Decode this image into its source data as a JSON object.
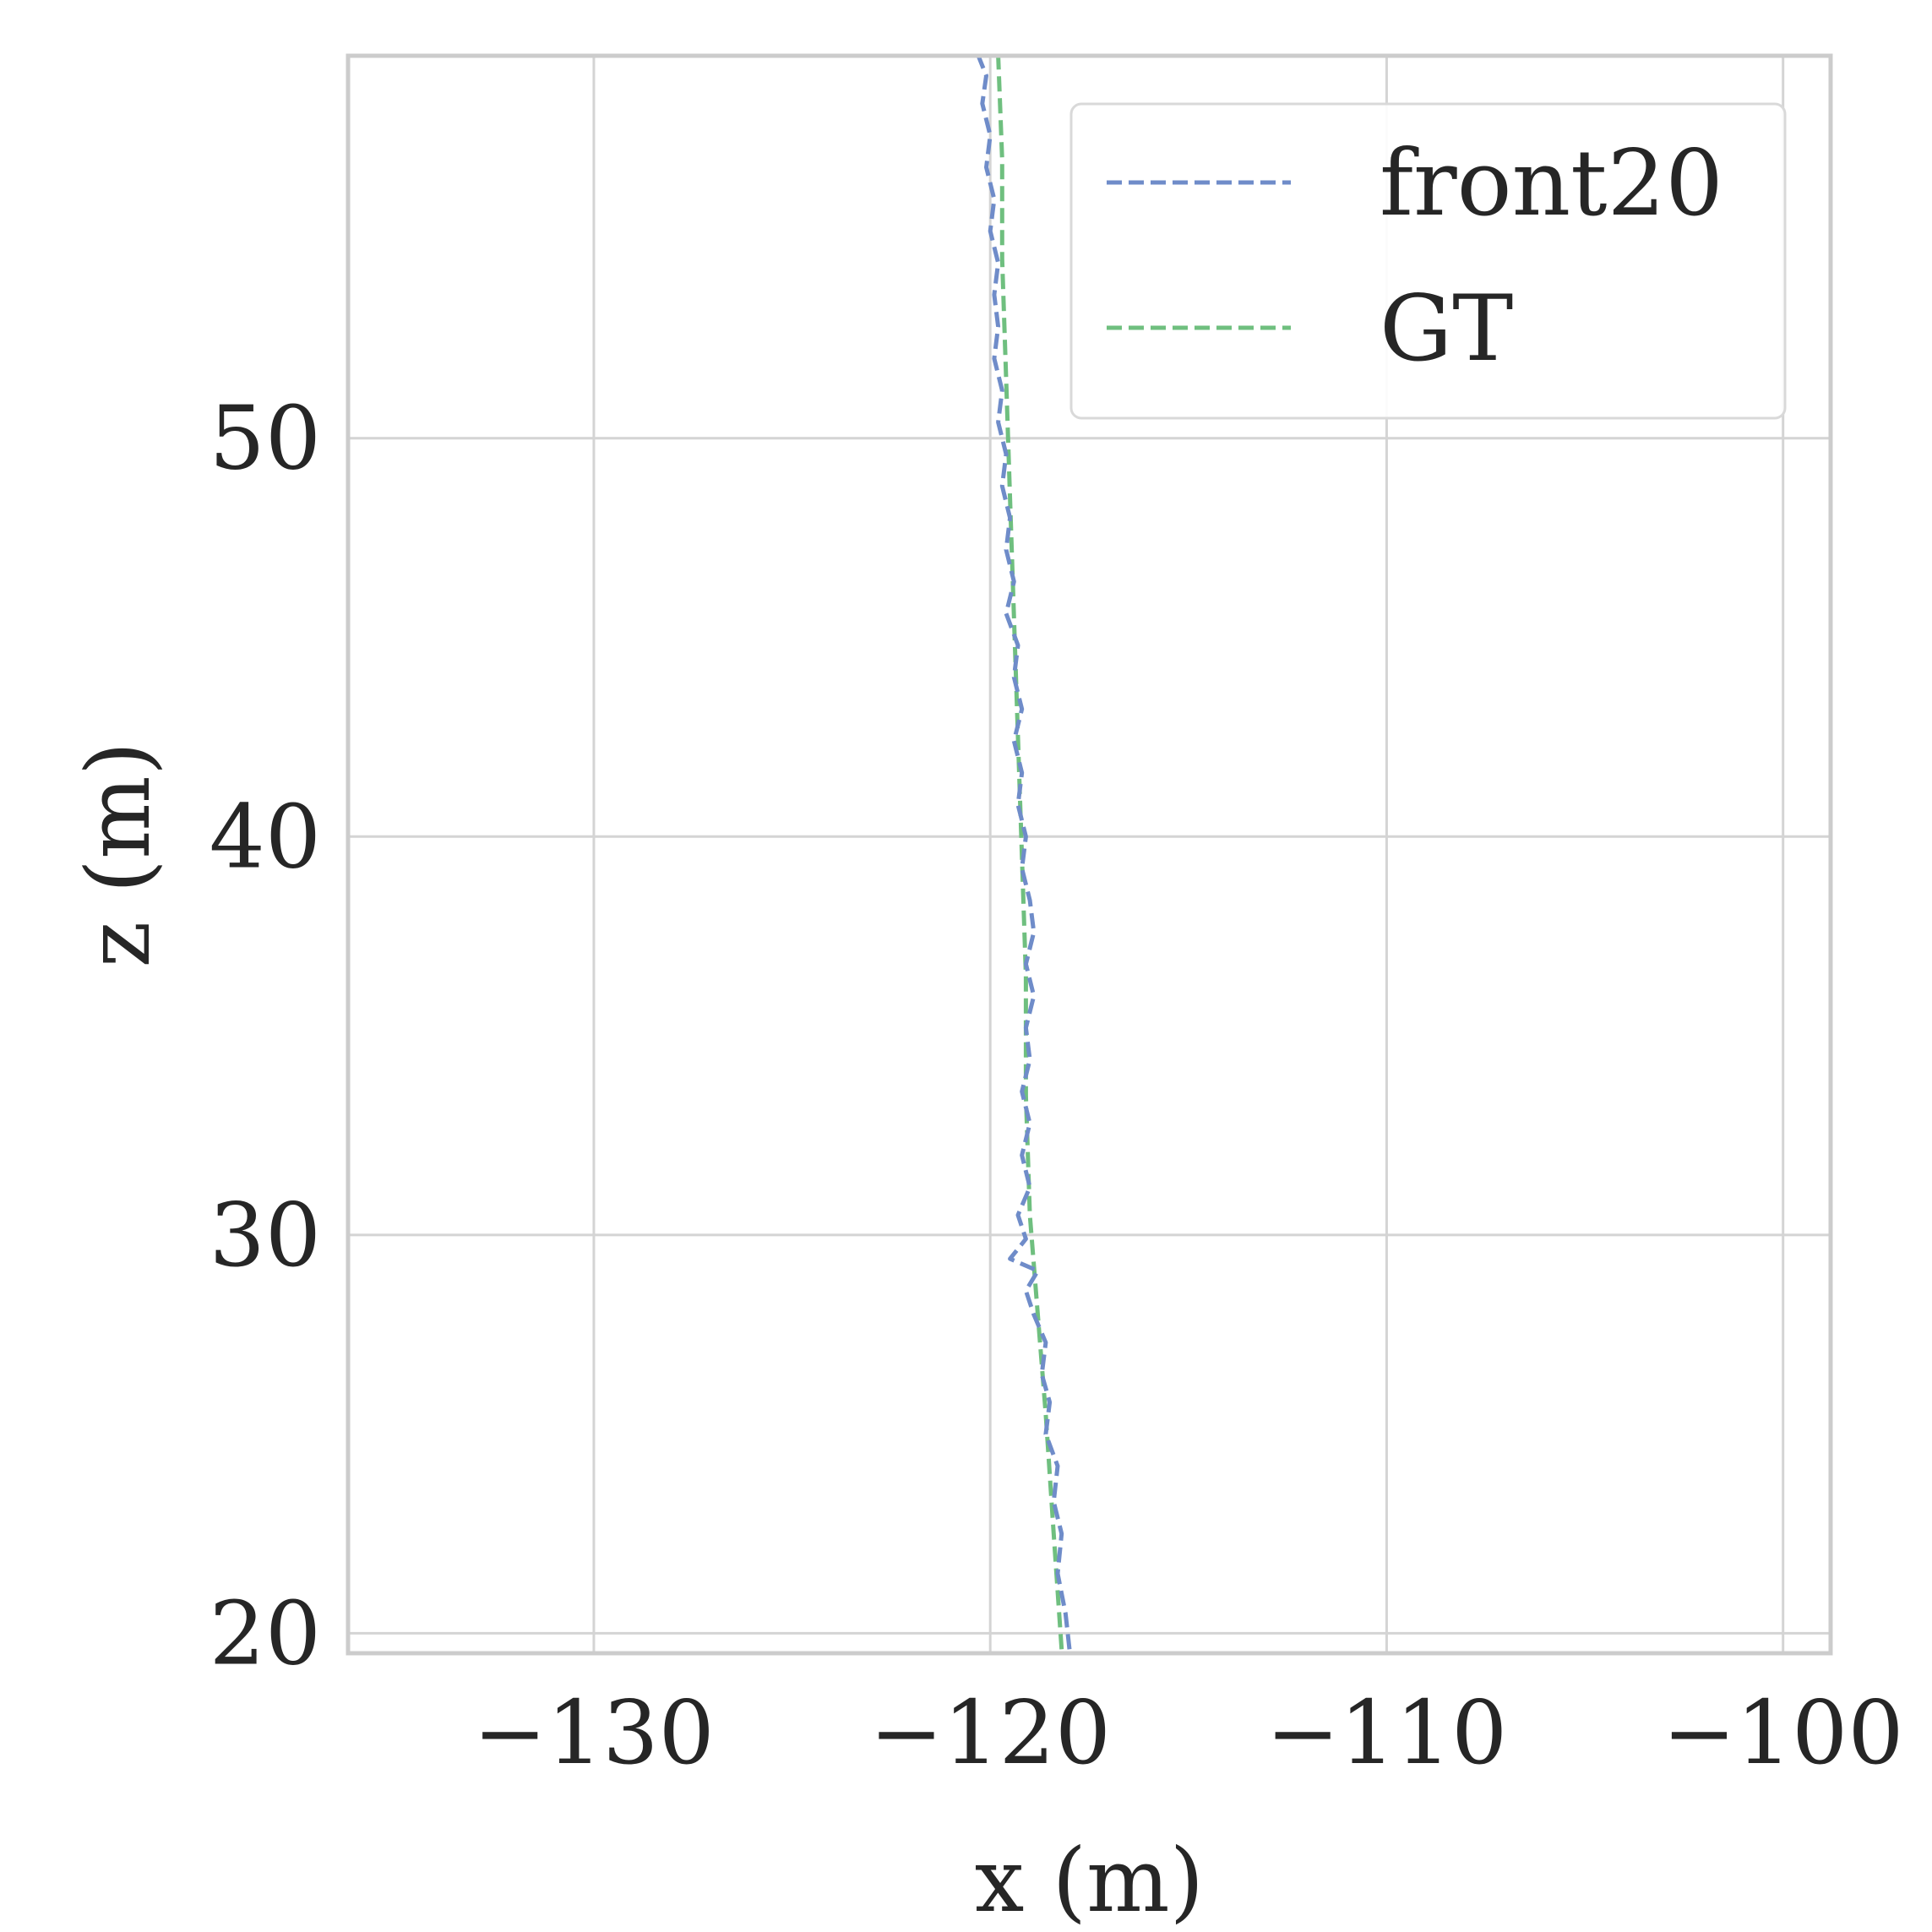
{
  "chart_data": {
    "type": "line",
    "xlabel": "x (m)",
    "ylabel": "z (m)",
    "xlim": [
      -136.2,
      -98.8
    ],
    "ylim": [
      19.5,
      59.6
    ],
    "xticks": [
      -130,
      -120,
      -110,
      -100
    ],
    "xtick_labels": [
      "−130",
      "−120",
      "−110",
      "−100"
    ],
    "yticks": [
      20,
      30,
      40,
      50
    ],
    "ytick_labels": [
      "20",
      "30",
      "40",
      "50"
    ],
    "grid": true,
    "legend_position": "top-right",
    "series": [
      {
        "name": "front20",
        "color": "#6f8cc9",
        "style": "dashed",
        "points": [
          [
            -118.0,
            19.6
          ],
          [
            -118.1,
            20.5
          ],
          [
            -118.3,
            21.5
          ],
          [
            -118.2,
            22.5
          ],
          [
            -118.4,
            23.3
          ],
          [
            -118.3,
            24.2
          ],
          [
            -118.6,
            25.0
          ],
          [
            -118.5,
            25.8
          ],
          [
            -118.7,
            26.5
          ],
          [
            -118.6,
            27.3
          ],
          [
            -118.9,
            28.0
          ],
          [
            -119.1,
            28.6
          ],
          [
            -118.8,
            29.1
          ],
          [
            -119.5,
            29.4
          ],
          [
            -119.1,
            29.9
          ],
          [
            -119.3,
            30.5
          ],
          [
            -119.0,
            31.2
          ],
          [
            -119.2,
            32.0
          ],
          [
            -119.0,
            32.8
          ],
          [
            -119.2,
            33.6
          ],
          [
            -119.0,
            34.4
          ],
          [
            -119.1,
            35.2
          ],
          [
            -118.9,
            36.0
          ],
          [
            -119.1,
            36.8
          ],
          [
            -118.9,
            37.6
          ],
          [
            -119.0,
            38.4
          ],
          [
            -119.2,
            39.2
          ],
          [
            -119.1,
            40.0
          ],
          [
            -119.3,
            40.8
          ],
          [
            -119.2,
            41.6
          ],
          [
            -119.4,
            42.4
          ],
          [
            -119.2,
            43.2
          ],
          [
            -119.4,
            44.0
          ],
          [
            -119.3,
            44.8
          ],
          [
            -119.6,
            45.6
          ],
          [
            -119.4,
            46.4
          ],
          [
            -119.6,
            47.2
          ],
          [
            -119.5,
            48.0
          ],
          [
            -119.7,
            48.8
          ],
          [
            -119.6,
            49.6
          ],
          [
            -119.8,
            50.4
          ],
          [
            -119.7,
            51.2
          ],
          [
            -119.9,
            52.0
          ],
          [
            -119.8,
            52.8
          ],
          [
            -119.9,
            53.6
          ],
          [
            -119.8,
            54.4
          ],
          [
            -120.0,
            55.2
          ],
          [
            -119.9,
            56.0
          ],
          [
            -120.1,
            56.8
          ],
          [
            -120.0,
            57.6
          ],
          [
            -120.2,
            58.4
          ],
          [
            -120.1,
            59.1
          ],
          [
            -120.3,
            59.6
          ]
        ]
      },
      {
        "name": "GT",
        "color": "#6fbf7f",
        "style": "dashed",
        "points": [
          [
            -118.2,
            19.6
          ],
          [
            -118.4,
            22.5
          ],
          [
            -118.6,
            25.5
          ],
          [
            -118.8,
            28.0
          ],
          [
            -119.0,
            30.5
          ],
          [
            -119.1,
            33.5
          ],
          [
            -119.1,
            36.5
          ],
          [
            -119.2,
            39.5
          ],
          [
            -119.3,
            42.5
          ],
          [
            -119.4,
            45.5
          ],
          [
            -119.5,
            48.5
          ],
          [
            -119.6,
            51.5
          ],
          [
            -119.7,
            54.5
          ],
          [
            -119.7,
            57.0
          ],
          [
            -119.8,
            59.6
          ]
        ]
      }
    ]
  }
}
